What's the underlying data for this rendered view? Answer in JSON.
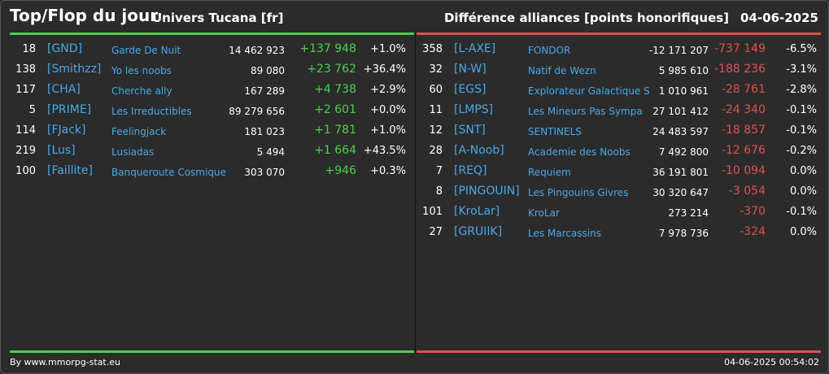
{
  "header": {
    "title": "Top/Flop du jour",
    "universe": "Univers Tucana [fr]",
    "category": "Différence alliances [points honorifiques]",
    "date": "04-06-2025"
  },
  "colors": {
    "gain": "#4cd04c",
    "loss": "#e05050",
    "link": "#4aa8e8"
  },
  "top": [
    {
      "rank": "18",
      "tag": "[GND]",
      "name": "Garde De Nuit",
      "points": "14 462 923",
      "delta": "+137 948",
      "pct": "+1.0%"
    },
    {
      "rank": "138",
      "tag": "[Smithzz]",
      "name": "Yo les noobs",
      "points": "89 080",
      "delta": "+23 762",
      "pct": "+36.4%"
    },
    {
      "rank": "117",
      "tag": "[CHA]",
      "name": "Cherche ally",
      "points": "167 289",
      "delta": "+4 738",
      "pct": "+2.9%"
    },
    {
      "rank": "5",
      "tag": "[PRIME]",
      "name": "Les Irreductibles",
      "points": "89 279 656",
      "delta": "+2 601",
      "pct": "+0.0%"
    },
    {
      "rank": "114",
      "tag": "[FJack]",
      "name": "Feelingjack",
      "points": "181 023",
      "delta": "+1 781",
      "pct": "+1.0%"
    },
    {
      "rank": "219",
      "tag": "[Lus]",
      "name": "Lusiadas",
      "points": "5 494",
      "delta": "+1 664",
      "pct": "+43.5%"
    },
    {
      "rank": "100",
      "tag": "[Faillite]",
      "name": "Banqueroute Cosmique",
      "points": "303 070",
      "delta": "+946",
      "pct": "+0.3%"
    }
  ],
  "flop": [
    {
      "rank": "358",
      "tag": "[L-AXE]",
      "name": "FONDOR",
      "points": "-12 171 207",
      "delta": "-737 149",
      "pct": "-6.5%"
    },
    {
      "rank": "32",
      "tag": "[N-W]",
      "name": "Natif de Wezn",
      "points": "5 985 610",
      "delta": "-188 236",
      "pct": "-3.1%"
    },
    {
      "rank": "60",
      "tag": "[EGS]",
      "name": "Explorateur Galactique S",
      "points": "1 010 961",
      "delta": "-28 761",
      "pct": "-2.8%"
    },
    {
      "rank": "11",
      "tag": "[LMPS]",
      "name": "Les Mineurs Pas Sympa",
      "points": "27 101 412",
      "delta": "-24 340",
      "pct": "-0.1%"
    },
    {
      "rank": "12",
      "tag": "[SNT]",
      "name": "SENTINELS",
      "points": "24 483 597",
      "delta": "-18 857",
      "pct": "-0.1%"
    },
    {
      "rank": "28",
      "tag": "[A-Noob]",
      "name": "Academie des Noobs",
      "points": "7 492 800",
      "delta": "-12 676",
      "pct": "-0.2%"
    },
    {
      "rank": "7",
      "tag": "[REQ]",
      "name": "Requiem",
      "points": "36 191 801",
      "delta": "-10 094",
      "pct": "0.0%"
    },
    {
      "rank": "8",
      "tag": "[PINGOUIN]",
      "name": "Les Pingouins Givres",
      "points": "30 320 647",
      "delta": "-3 054",
      "pct": "0.0%"
    },
    {
      "rank": "101",
      "tag": "[KroLar]",
      "name": "KroLar",
      "points": "273 214",
      "delta": "-370",
      "pct": "-0.1%"
    },
    {
      "rank": "27",
      "tag": "[GRUIIK]",
      "name": "Les Marcassins",
      "points": "7 978 736",
      "delta": "-324",
      "pct": "0.0%"
    }
  ],
  "footer": {
    "credit": "By www.mmorpg-stat.eu",
    "timestamp": "04-06-2025 00:54:02"
  }
}
